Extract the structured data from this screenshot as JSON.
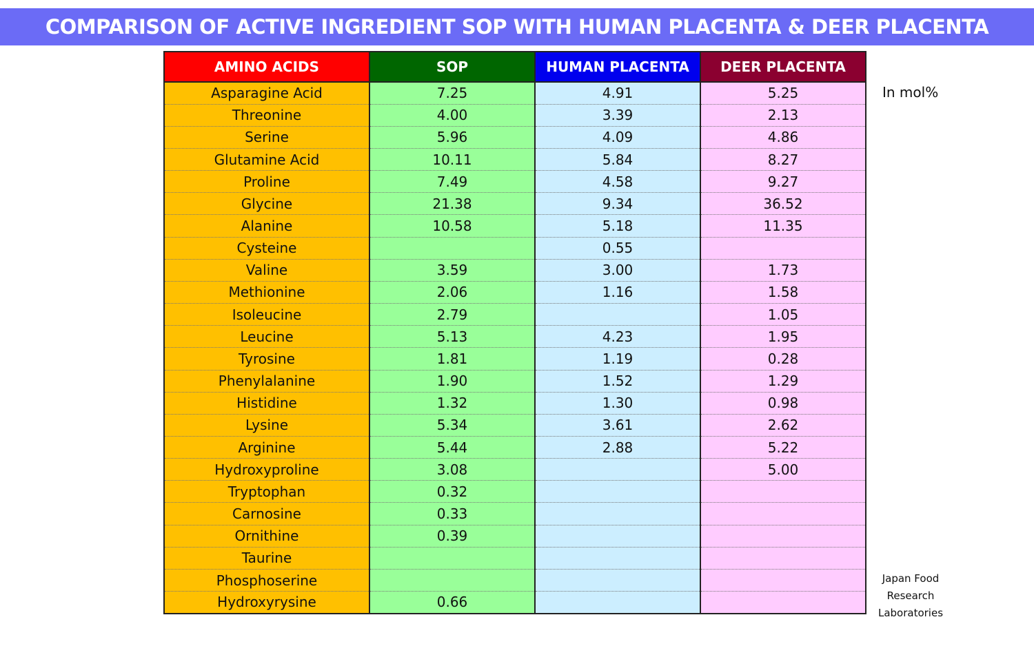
{
  "header": {
    "title": "COMPARISON OF ACTIVE INGREDIENT SOP WITH HUMAN PLACENTA & DEER PLACENTA"
  },
  "table": {
    "columns": [
      "AMINO ACIDS",
      "SOP",
      "HUMAN PLACENTA",
      "DEER PLACENTA"
    ],
    "rows": [
      [
        "Asparagine Acid",
        "7.25",
        "4.91",
        "5.25"
      ],
      [
        "Threonine",
        "4.00",
        "3.39",
        "2.13"
      ],
      [
        "Serine",
        "5.96",
        "4.09",
        "4.86"
      ],
      [
        "Glutamine Acid",
        "10.11",
        "5.84",
        "8.27"
      ],
      [
        "Proline",
        "7.49",
        "4.58",
        "9.27"
      ],
      [
        "Glycine",
        "21.38",
        "9.34",
        "36.52"
      ],
      [
        "Alanine",
        "10.58",
        "5.18",
        "11.35"
      ],
      [
        "Cysteine",
        null,
        "0.55",
        null
      ],
      [
        "Valine",
        "3.59",
        "3.00",
        "1.73"
      ],
      [
        "Methionine",
        "2.06",
        "1.16",
        "1.58"
      ],
      [
        "Isoleucine",
        "2.79",
        null,
        "1.05"
      ],
      [
        "Leucine",
        "5.13",
        "4.23",
        "1.95"
      ],
      [
        "Tyrosine",
        "1.81",
        "1.19",
        "0.28"
      ],
      [
        "Phenylalanine",
        "1.90",
        "1.52",
        "1.29"
      ],
      [
        "Histidine",
        "1.32",
        "1.30",
        "0.98"
      ],
      [
        "Lysine",
        "5.34",
        "3.61",
        "2.62"
      ],
      [
        "Arginine",
        "5.44",
        "2.88",
        "5.22"
      ],
      [
        "Hydroxyproline",
        "3.08",
        null,
        "5.00"
      ],
      [
        "Tryptophan",
        "0.32",
        null,
        null
      ],
      [
        "Carnosine",
        "0.33",
        null,
        null
      ],
      [
        "Ornithine",
        "0.39",
        null,
        null
      ],
      [
        "Taurine",
        null,
        null,
        null
      ],
      [
        "Phosphoserine",
        null,
        null,
        null
      ],
      [
        "Hydroxyrysine",
        "0.66",
        null,
        null
      ]
    ]
  },
  "unit_note": "In mol%",
  "source": [
    "Japan Food",
    "Research",
    "Laboratories"
  ]
}
